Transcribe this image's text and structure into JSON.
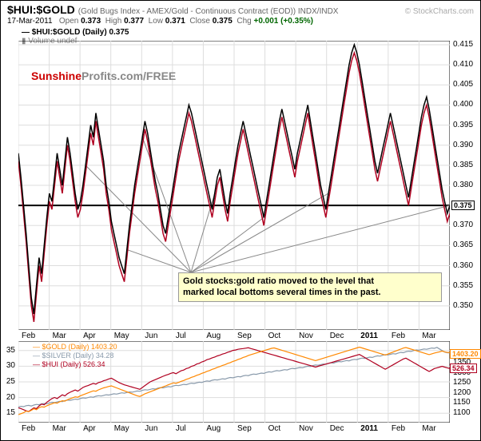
{
  "header": {
    "symbol": "$HUI:$GOLD",
    "subtitle": "(Gold Bugs Index - AMEX/Gold - Continuous Contract (EOD)) INDX/INDX",
    "watermark": "© StockCharts.com",
    "date": "17-Mar-2011",
    "open_label": "Open",
    "open": "0.373",
    "high_label": "High",
    "high": "0.377",
    "low_label": "Low",
    "low": "0.371",
    "close_label": "Close",
    "close": "0.375",
    "chg_label": "Chg",
    "chg": "+0.001 (+0.35%)",
    "legend_main": "$HUI:$GOLD (Daily) 0.375",
    "legend_vol": "Volume undef"
  },
  "main_chart": {
    "type": "line",
    "ylim": [
      0.344,
      0.416
    ],
    "yticks": [
      0.35,
      0.355,
      0.36,
      0.365,
      0.37,
      0.375,
      0.38,
      0.385,
      0.39,
      0.395,
      0.4,
      0.405,
      0.41,
      0.415
    ],
    "x_months": [
      "Feb",
      "Mar",
      "Apr",
      "May",
      "Jun",
      "Jul",
      "Aug",
      "Sep",
      "Oct",
      "Nov",
      "Dec",
      "2011",
      "Feb",
      "Mar"
    ],
    "horizontal_line": 0.375,
    "horizontal_line_label": "0.375",
    "horizontal_line_color": "#000000",
    "line1_color": "#000000",
    "line2_color": "#b00020",
    "background_color": "#ffffff",
    "grid_color": "#dddddd",
    "line_width": 1.5,
    "data_close": [
      0.388,
      0.382,
      0.375,
      0.368,
      0.36,
      0.352,
      0.348,
      0.355,
      0.362,
      0.358,
      0.365,
      0.372,
      0.378,
      0.376,
      0.382,
      0.388,
      0.384,
      0.38,
      0.386,
      0.392,
      0.388,
      0.383,
      0.378,
      0.374,
      0.376,
      0.38,
      0.385,
      0.39,
      0.395,
      0.392,
      0.398,
      0.394,
      0.39,
      0.386,
      0.38,
      0.376,
      0.371,
      0.368,
      0.365,
      0.362,
      0.36,
      0.358,
      0.364,
      0.37,
      0.375,
      0.38,
      0.384,
      0.388,
      0.392,
      0.396,
      0.393,
      0.389,
      0.385,
      0.381,
      0.378,
      0.374,
      0.37,
      0.368,
      0.372,
      0.376,
      0.38,
      0.384,
      0.388,
      0.391,
      0.394,
      0.397,
      0.4,
      0.398,
      0.395,
      0.392,
      0.389,
      0.386,
      0.383,
      0.38,
      0.377,
      0.374,
      0.378,
      0.382,
      0.384,
      0.38,
      0.376,
      0.373,
      0.378,
      0.382,
      0.386,
      0.39,
      0.393,
      0.396,
      0.393,
      0.39,
      0.387,
      0.384,
      0.381,
      0.378,
      0.375,
      0.372,
      0.376,
      0.38,
      0.384,
      0.388,
      0.392,
      0.396,
      0.399,
      0.396,
      0.393,
      0.39,
      0.387,
      0.384,
      0.388,
      0.391,
      0.394,
      0.397,
      0.4,
      0.396,
      0.392,
      0.388,
      0.384,
      0.38,
      0.377,
      0.374,
      0.378,
      0.382,
      0.386,
      0.39,
      0.394,
      0.398,
      0.402,
      0.406,
      0.41,
      0.413,
      0.415,
      0.413,
      0.41,
      0.406,
      0.402,
      0.398,
      0.394,
      0.39,
      0.386,
      0.383,
      0.386,
      0.389,
      0.392,
      0.395,
      0.398,
      0.395,
      0.392,
      0.389,
      0.386,
      0.383,
      0.38,
      0.377,
      0.381,
      0.385,
      0.389,
      0.393,
      0.397,
      0.4,
      0.402,
      0.399,
      0.395,
      0.391,
      0.387,
      0.383,
      0.379,
      0.376,
      0.373,
      0.375
    ],
    "data_line2": [
      0.386,
      0.38,
      0.373,
      0.366,
      0.358,
      0.35,
      0.346,
      0.353,
      0.36,
      0.356,
      0.363,
      0.37,
      0.376,
      0.374,
      0.38,
      0.386,
      0.382,
      0.378,
      0.384,
      0.39,
      0.386,
      0.381,
      0.376,
      0.372,
      0.374,
      0.378,
      0.383,
      0.388,
      0.393,
      0.39,
      0.396,
      0.392,
      0.388,
      0.384,
      0.378,
      0.374,
      0.369,
      0.366,
      0.363,
      0.36,
      0.358,
      0.356,
      0.362,
      0.368,
      0.373,
      0.378,
      0.382,
      0.386,
      0.39,
      0.394,
      0.391,
      0.387,
      0.383,
      0.379,
      0.376,
      0.372,
      0.368,
      0.366,
      0.37,
      0.374,
      0.378,
      0.382,
      0.386,
      0.389,
      0.392,
      0.395,
      0.398,
      0.396,
      0.393,
      0.39,
      0.387,
      0.384,
      0.381,
      0.378,
      0.375,
      0.372,
      0.376,
      0.38,
      0.382,
      0.378,
      0.374,
      0.371,
      0.376,
      0.38,
      0.384,
      0.388,
      0.391,
      0.394,
      0.391,
      0.388,
      0.385,
      0.382,
      0.379,
      0.376,
      0.373,
      0.37,
      0.374,
      0.378,
      0.382,
      0.386,
      0.39,
      0.394,
      0.397,
      0.394,
      0.391,
      0.388,
      0.385,
      0.382,
      0.386,
      0.389,
      0.392,
      0.395,
      0.398,
      0.394,
      0.39,
      0.386,
      0.382,
      0.378,
      0.375,
      0.372,
      0.376,
      0.38,
      0.384,
      0.388,
      0.392,
      0.396,
      0.4,
      0.404,
      0.408,
      0.411,
      0.413,
      0.411,
      0.408,
      0.404,
      0.4,
      0.396,
      0.392,
      0.388,
      0.384,
      0.381,
      0.384,
      0.387,
      0.39,
      0.393,
      0.396,
      0.393,
      0.39,
      0.387,
      0.384,
      0.381,
      0.378,
      0.375,
      0.379,
      0.383,
      0.387,
      0.391,
      0.395,
      0.398,
      0.4,
      0.397,
      0.393,
      0.389,
      0.385,
      0.381,
      0.377,
      0.374,
      0.371,
      0.373
    ],
    "annotation": {
      "text1": "Gold stocks:gold ratio moved to the level that",
      "text2": "marked local bottoms several times in the past."
    },
    "watermark_logo": {
      "sunshine": "Sunshine",
      "profits": "Profits.com/FREE"
    },
    "arrow_sources": [
      26,
      42,
      48,
      76,
      95,
      120,
      167
    ],
    "arrow_target_x": 0.4,
    "arrow_color": "#888888"
  },
  "lower_chart": {
    "type": "line",
    "y_left_lim": [
      12,
      38
    ],
    "y_left_ticks": [
      15,
      20,
      25,
      30,
      35
    ],
    "y_right_lim": [
      1050,
      1460
    ],
    "y_right_ticks": [
      1100,
      1150,
      1200,
      1250,
      1300,
      1350,
      1400
    ],
    "x_months": [
      "Feb",
      "Mar",
      "Apr",
      "May",
      "Jun",
      "Jul",
      "Aug",
      "Sep",
      "Oct",
      "Nov",
      "Dec",
      "2011",
      "Feb",
      "Mar"
    ],
    "series": {
      "gold": {
        "label": "$GOLD (Daily) 1403.20",
        "color": "#ff8800",
        "value_label": "1403.20"
      },
      "silver": {
        "label": "$SILVER (Daily) 34.28",
        "color": "#8899aa"
      },
      "hui": {
        "label": "$HUI (Daily) 526.34",
        "color": "#b00020",
        "value_label": "526.34"
      }
    },
    "background_color": "#ffffff",
    "grid_color": "#dddddd",
    "gold_data": [
      1090,
      1095,
      1100,
      1108,
      1105,
      1112,
      1120,
      1115,
      1125,
      1130,
      1128,
      1135,
      1140,
      1145,
      1150,
      1148,
      1155,
      1160,
      1158,
      1165,
      1170,
      1175,
      1180,
      1178,
      1185,
      1190,
      1195,
      1200,
      1205,
      1210,
      1208,
      1215,
      1220,
      1225,
      1228,
      1232,
      1235,
      1230,
      1225,
      1220,
      1215,
      1210,
      1205,
      1200,
      1195,
      1190,
      1185,
      1182,
      1188,
      1195,
      1200,
      1205,
      1210,
      1215,
      1220,
      1225,
      1230,
      1235,
      1240,
      1245,
      1250,
      1248,
      1252,
      1258,
      1262,
      1268,
      1272,
      1278,
      1282,
      1288,
      1292,
      1298,
      1302,
      1308,
      1312,
      1318,
      1322,
      1328,
      1332,
      1338,
      1342,
      1348,
      1352,
      1358,
      1362,
      1368,
      1372,
      1378,
      1382,
      1388,
      1392,
      1396,
      1400,
      1404,
      1408,
      1412,
      1416,
      1420,
      1424,
      1426,
      1422,
      1418,
      1414,
      1410,
      1406,
      1402,
      1398,
      1394,
      1390,
      1386,
      1382,
      1378,
      1374,
      1370,
      1366,
      1362,
      1366,
      1370,
      1374,
      1378,
      1382,
      1386,
      1390,
      1394,
      1398,
      1402,
      1406,
      1410,
      1414,
      1418,
      1422,
      1426,
      1430,
      1426,
      1422,
      1418,
      1414,
      1410,
      1406,
      1402,
      1398,
      1394,
      1390,
      1395,
      1400,
      1405,
      1410,
      1415,
      1420,
      1425,
      1428,
      1424,
      1420,
      1416,
      1412,
      1408,
      1404,
      1400,
      1396,
      1392,
      1396,
      1400,
      1403,
      1406,
      1410,
      1406,
      1403,
      1403
    ],
    "silver_data": [
      17.0,
      17.2,
      17.1,
      17.4,
      17.5,
      17.3,
      17.6,
      17.8,
      17.7,
      18.0,
      18.1,
      18.0,
      18.3,
      18.5,
      18.4,
      18.6,
      18.8,
      18.7,
      19.0,
      19.2,
      19.1,
      19.3,
      19.5,
      19.4,
      19.7,
      19.9,
      19.8,
      20.0,
      20.2,
      20.1,
      20.4,
      20.6,
      20.5,
      20.7,
      20.9,
      20.8,
      21.0,
      21.2,
      21.1,
      21.3,
      21.5,
      21.4,
      21.6,
      21.8,
      21.7,
      21.9,
      22.1,
      22.0,
      22.3,
      22.5,
      22.4,
      22.6,
      22.8,
      22.7,
      23.0,
      23.2,
      23.1,
      23.3,
      23.5,
      23.4,
      23.7,
      23.9,
      23.8,
      24.0,
      24.2,
      24.1,
      24.4,
      24.6,
      24.5,
      24.7,
      24.9,
      24.8,
      25.1,
      25.3,
      25.2,
      25.5,
      25.7,
      25.6,
      25.8,
      26.0,
      25.9,
      26.2,
      26.4,
      26.3,
      26.5,
      26.7,
      26.6,
      26.9,
      27.1,
      27.0,
      27.3,
      27.5,
      27.4,
      27.6,
      27.8,
      27.7,
      28.0,
      28.2,
      28.1,
      28.4,
      28.6,
      28.5,
      28.7,
      28.9,
      28.8,
      29.1,
      29.3,
      29.2,
      29.4,
      29.6,
      29.5,
      29.8,
      30.0,
      29.9,
      30.2,
      30.4,
      30.3,
      30.5,
      30.7,
      30.6,
      30.9,
      31.1,
      31.0,
      31.3,
      31.5,
      31.4,
      31.6,
      31.8,
      31.7,
      32.0,
      32.2,
      32.1,
      32.4,
      32.6,
      32.5,
      32.7,
      32.9,
      32.8,
      33.1,
      33.3,
      33.2,
      33.5,
      33.7,
      33.6,
      33.8,
      34.0,
      33.9,
      34.2,
      34.4,
      34.3,
      34.6,
      34.8,
      34.7,
      35.0,
      35.2,
      35.1,
      35.3,
      35.5,
      35.4,
      35.6,
      35.8,
      35.7,
      36.0,
      35.5,
      35.0,
      34.5,
      34.3,
      34.28
    ],
    "hui_data": [
      420,
      418,
      415,
      412,
      410,
      415,
      420,
      418,
      425,
      430,
      428,
      435,
      440,
      445,
      448,
      445,
      450,
      455,
      452,
      458,
      462,
      465,
      468,
      465,
      470,
      475,
      478,
      480,
      483,
      486,
      484,
      488,
      490,
      493,
      495,
      498,
      500,
      496,
      492,
      488,
      485,
      482,
      480,
      478,
      476,
      474,
      472,
      470,
      475,
      480,
      485,
      490,
      493,
      496,
      499,
      502,
      505,
      508,
      510,
      513,
      515,
      512,
      516,
      520,
      522,
      526,
      528,
      532,
      534,
      538,
      540,
      544,
      546,
      550,
      552,
      555,
      557,
      560,
      562,
      565,
      567,
      570,
      572,
      575,
      576,
      578,
      579,
      580,
      581,
      582,
      580,
      578,
      576,
      574,
      572,
      570,
      568,
      566,
      564,
      562,
      560,
      558,
      556,
      554,
      552,
      550,
      548,
      546,
      544,
      542,
      540,
      538,
      536,
      534,
      532,
      530,
      532,
      534,
      536,
      538,
      540,
      542,
      544,
      546,
      548,
      550,
      552,
      554,
      556,
      558,
      560,
      562,
      564,
      560,
      556,
      552,
      548,
      544,
      540,
      536,
      532,
      528,
      524,
      528,
      532,
      536,
      540,
      544,
      548,
      552,
      554,
      550,
      546,
      542,
      538,
      534,
      530,
      526,
      522,
      518,
      522,
      526,
      528,
      530,
      532,
      530,
      528,
      526
    ]
  }
}
